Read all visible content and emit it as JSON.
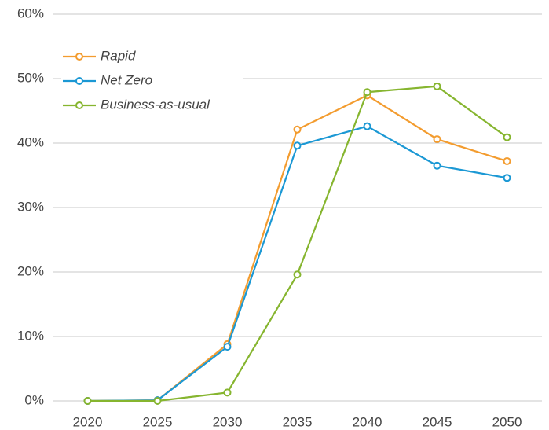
{
  "chart_data": {
    "type": "line",
    "categories": [
      "2020",
      "2025",
      "2030",
      "2035",
      "2040",
      "2045",
      "2050"
    ],
    "series": [
      {
        "name": "Rapid",
        "color": "#f39c2f",
        "values": [
          0,
          0.1,
          8.8,
          42.1,
          47.4,
          40.6,
          37.2
        ]
      },
      {
        "name": "Net Zero",
        "color": "#1b98d4",
        "values": [
          0,
          0.1,
          8.4,
          39.6,
          42.6,
          36.5,
          34.6
        ]
      },
      {
        "name": "Business-as-usual",
        "color": "#86b52f",
        "values": [
          0,
          0,
          1.3,
          19.6,
          47.9,
          48.8,
          40.9
        ]
      }
    ],
    "ylim": [
      0,
      60
    ],
    "yticks": [
      {
        "value": 0,
        "label": "0%"
      },
      {
        "value": 10,
        "label": "10%"
      },
      {
        "value": 20,
        "label": "20%"
      },
      {
        "value": 30,
        "label": "30%"
      },
      {
        "value": 40,
        "label": "40%"
      },
      {
        "value": 50,
        "label": "50%"
      },
      {
        "value": 60,
        "label": "60%"
      }
    ],
    "grid": true,
    "legend": "upper left"
  }
}
